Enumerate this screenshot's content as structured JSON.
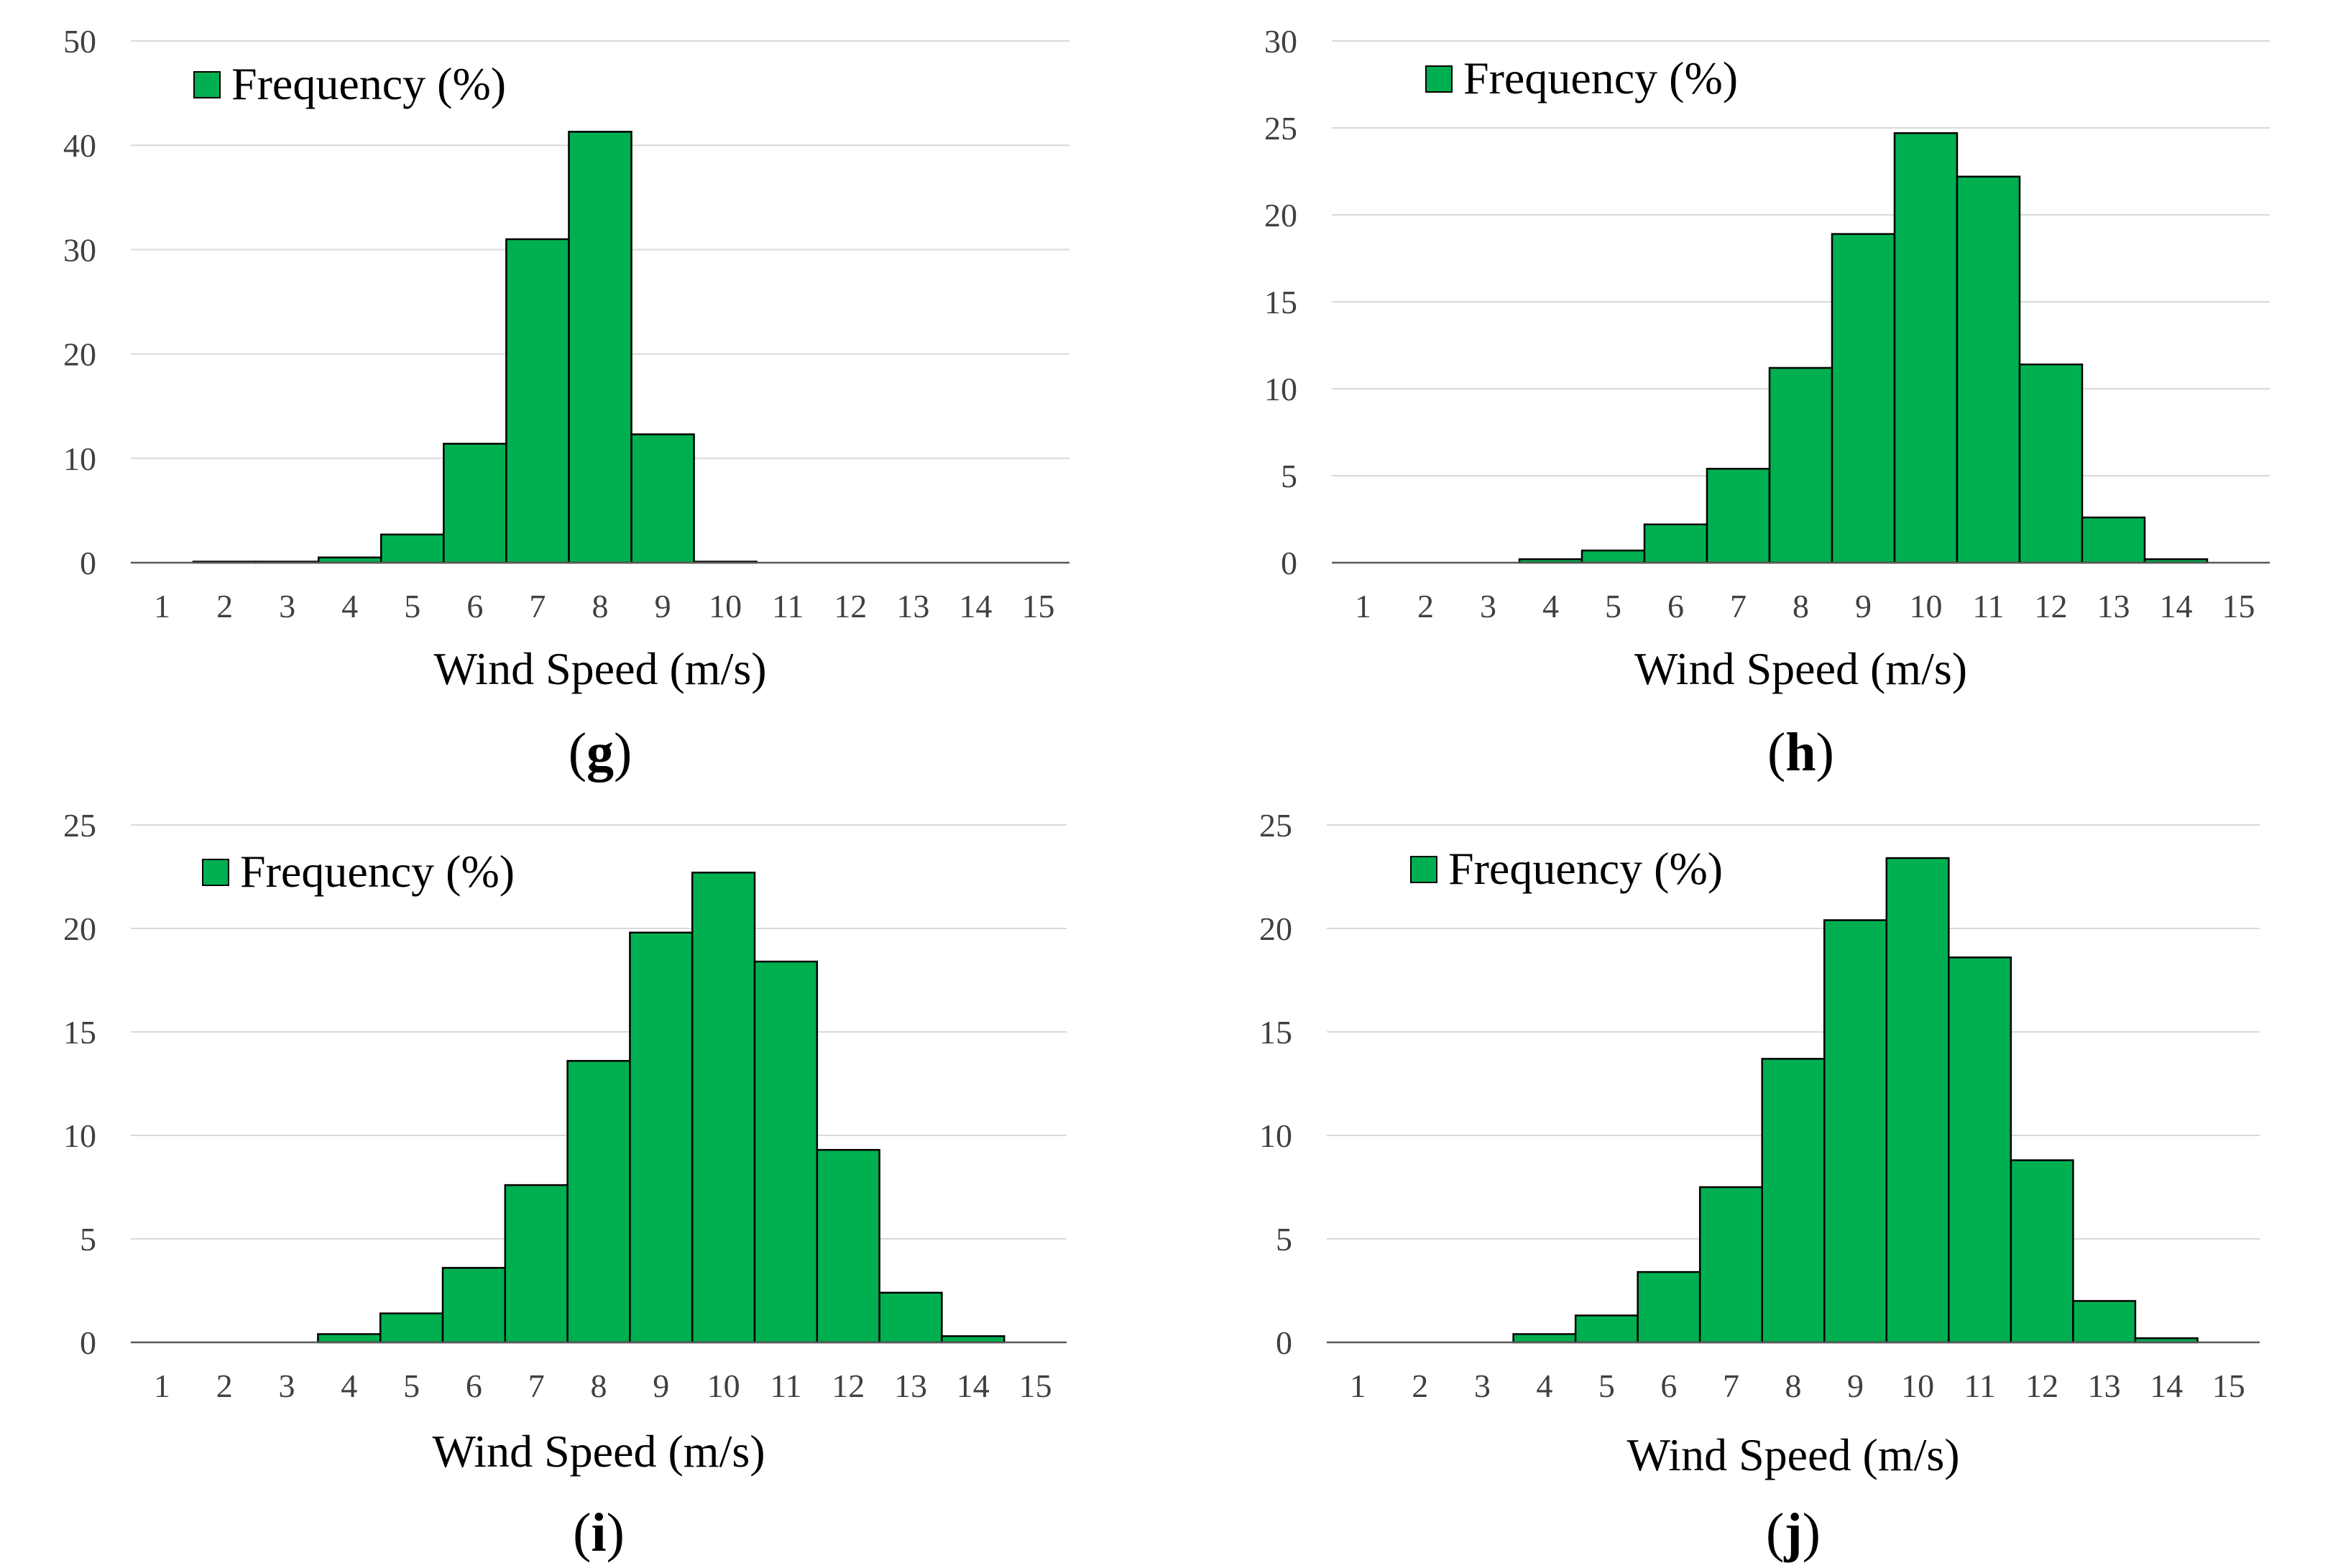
{
  "colors": {
    "bar_fill": "#00b050",
    "bar_stroke": "#000000"
  },
  "chart_data": [
    {
      "panel": "g",
      "type": "bar",
      "legend": "Frequency (%)",
      "xlabel": "Wind Speed (m/s)",
      "ylabel": "",
      "categories": [
        "1",
        "2",
        "3",
        "4",
        "5",
        "6",
        "7",
        "8",
        "9",
        "10",
        "11",
        "12",
        "13",
        "14",
        "15"
      ],
      "values": [
        0,
        0.1,
        0.1,
        0.5,
        2.7,
        11.4,
        31.0,
        41.3,
        12.3,
        0.1,
        0,
        0,
        0,
        0,
        0
      ],
      "yticks": [
        0,
        10,
        20,
        30,
        40,
        50
      ],
      "ylim": [
        0,
        50
      ],
      "grid": true,
      "legend_position": "top-left",
      "caption_open": "(",
      "caption_letter": "g",
      "caption_close": ")"
    },
    {
      "panel": "h",
      "type": "bar",
      "legend": "Frequency (%)",
      "xlabel": "Wind Speed (m/s)",
      "ylabel": "",
      "categories": [
        "1",
        "2",
        "3",
        "4",
        "5",
        "6",
        "7",
        "8",
        "9",
        "10",
        "11",
        "12",
        "13",
        "14",
        "15"
      ],
      "values": [
        0,
        0,
        0,
        0.2,
        0.7,
        2.2,
        5.4,
        11.2,
        18.9,
        24.7,
        22.2,
        11.4,
        2.6,
        0.2,
        0
      ],
      "yticks": [
        0,
        5,
        10,
        15,
        20,
        25,
        30
      ],
      "ylim": [
        0,
        30
      ],
      "grid": true,
      "legend_position": "top-left",
      "caption_open": "(",
      "caption_letter": "h",
      "caption_close": ")"
    },
    {
      "panel": "i",
      "type": "bar",
      "legend": "Frequency (%)",
      "xlabel": "Wind Speed (m/s)",
      "ylabel": "",
      "categories": [
        "1",
        "2",
        "3",
        "4",
        "5",
        "6",
        "7",
        "8",
        "9",
        "10",
        "11",
        "12",
        "13",
        "14",
        "15"
      ],
      "values": [
        0,
        0,
        0,
        0.4,
        1.4,
        3.6,
        7.6,
        13.6,
        19.8,
        22.7,
        18.4,
        9.3,
        2.4,
        0.3,
        0
      ],
      "yticks": [
        0,
        5,
        10,
        15,
        20,
        25
      ],
      "ylim": [
        0,
        25
      ],
      "grid": true,
      "legend_position": "top-left",
      "caption_open": "(",
      "caption_letter": "i",
      "caption_close": ")"
    },
    {
      "panel": "j",
      "type": "bar",
      "legend": "Frequency (%)",
      "xlabel": "Wind Speed (m/s)",
      "ylabel": "",
      "categories": [
        "1",
        "2",
        "3",
        "4",
        "5",
        "6",
        "7",
        "8",
        "9",
        "10",
        "11",
        "12",
        "13",
        "14",
        "15"
      ],
      "values": [
        0,
        0,
        0,
        0.4,
        1.3,
        3.4,
        7.5,
        13.7,
        20.4,
        23.4,
        18.6,
        8.8,
        2.0,
        0.2,
        0
      ],
      "yticks": [
        0,
        5,
        10,
        15,
        20,
        25
      ],
      "ylim": [
        0,
        25
      ],
      "grid": true,
      "legend_position": "top-left",
      "caption_open": "(",
      "caption_letter": "j",
      "caption_close": ")"
    }
  ]
}
